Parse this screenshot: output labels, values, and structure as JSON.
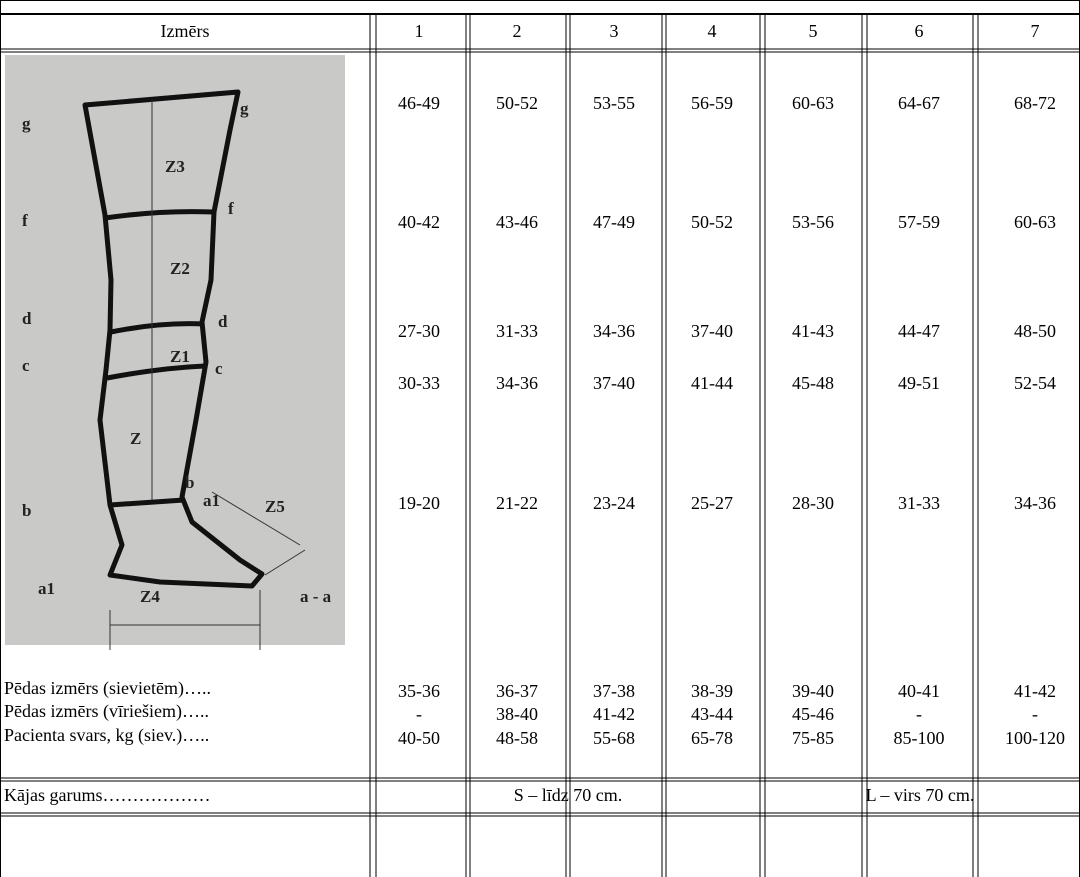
{
  "table": {
    "header": [
      "Izmērs",
      "1",
      "2",
      "3",
      "4",
      "5",
      "6",
      "7"
    ],
    "measurement_rows": [
      [
        "46-49",
        "50-52",
        "53-55",
        "56-59",
        "60-63",
        "64-67",
        "68-72"
      ],
      [
        "40-42",
        "43-46",
        "47-49",
        "50-52",
        "53-56",
        "57-59",
        "60-63"
      ],
      [
        "27-30",
        "31-33",
        "34-36",
        "37-40",
        "41-43",
        "44-47",
        "48-50"
      ],
      [
        "30-33",
        "34-36",
        "37-40",
        "41-44",
        "45-48",
        "49-51",
        "52-54"
      ],
      [
        "19-20",
        "21-22",
        "23-24",
        "25-27",
        "28-30",
        "31-33",
        "34-36"
      ]
    ],
    "foot_rows": [
      {
        "label": "Pēdas izmērs (sievietēm)…..",
        "values": [
          "35-36",
          "36-37",
          "37-38",
          "38-39",
          "39-40",
          "40-41",
          "41-42"
        ]
      },
      {
        "label": "Pēdas izmērs (vīriešiem)…..",
        "values": [
          "-",
          "38-40",
          "41-42",
          "43-44",
          "45-46",
          "-",
          "-"
        ]
      },
      {
        "label": "Pacienta svars, kg (siev.)…..",
        "values": [
          "40-50",
          "48-58",
          "55-68",
          "65-78",
          "75-85",
          "85-100",
          "100-120"
        ]
      }
    ],
    "length_row": {
      "label": "Kājas garums………………",
      "values": [
        "S – līdz 70 cm.",
        "L – virs 70 cm."
      ]
    }
  },
  "figure": {
    "labels": [
      "g",
      "g",
      "Z3",
      "f",
      "f",
      "Z2",
      "d",
      "d",
      "Z1",
      "c",
      "c",
      "Z",
      "b",
      "b",
      "a1",
      "Z5",
      "a1",
      "Z4",
      "a - a"
    ]
  }
}
